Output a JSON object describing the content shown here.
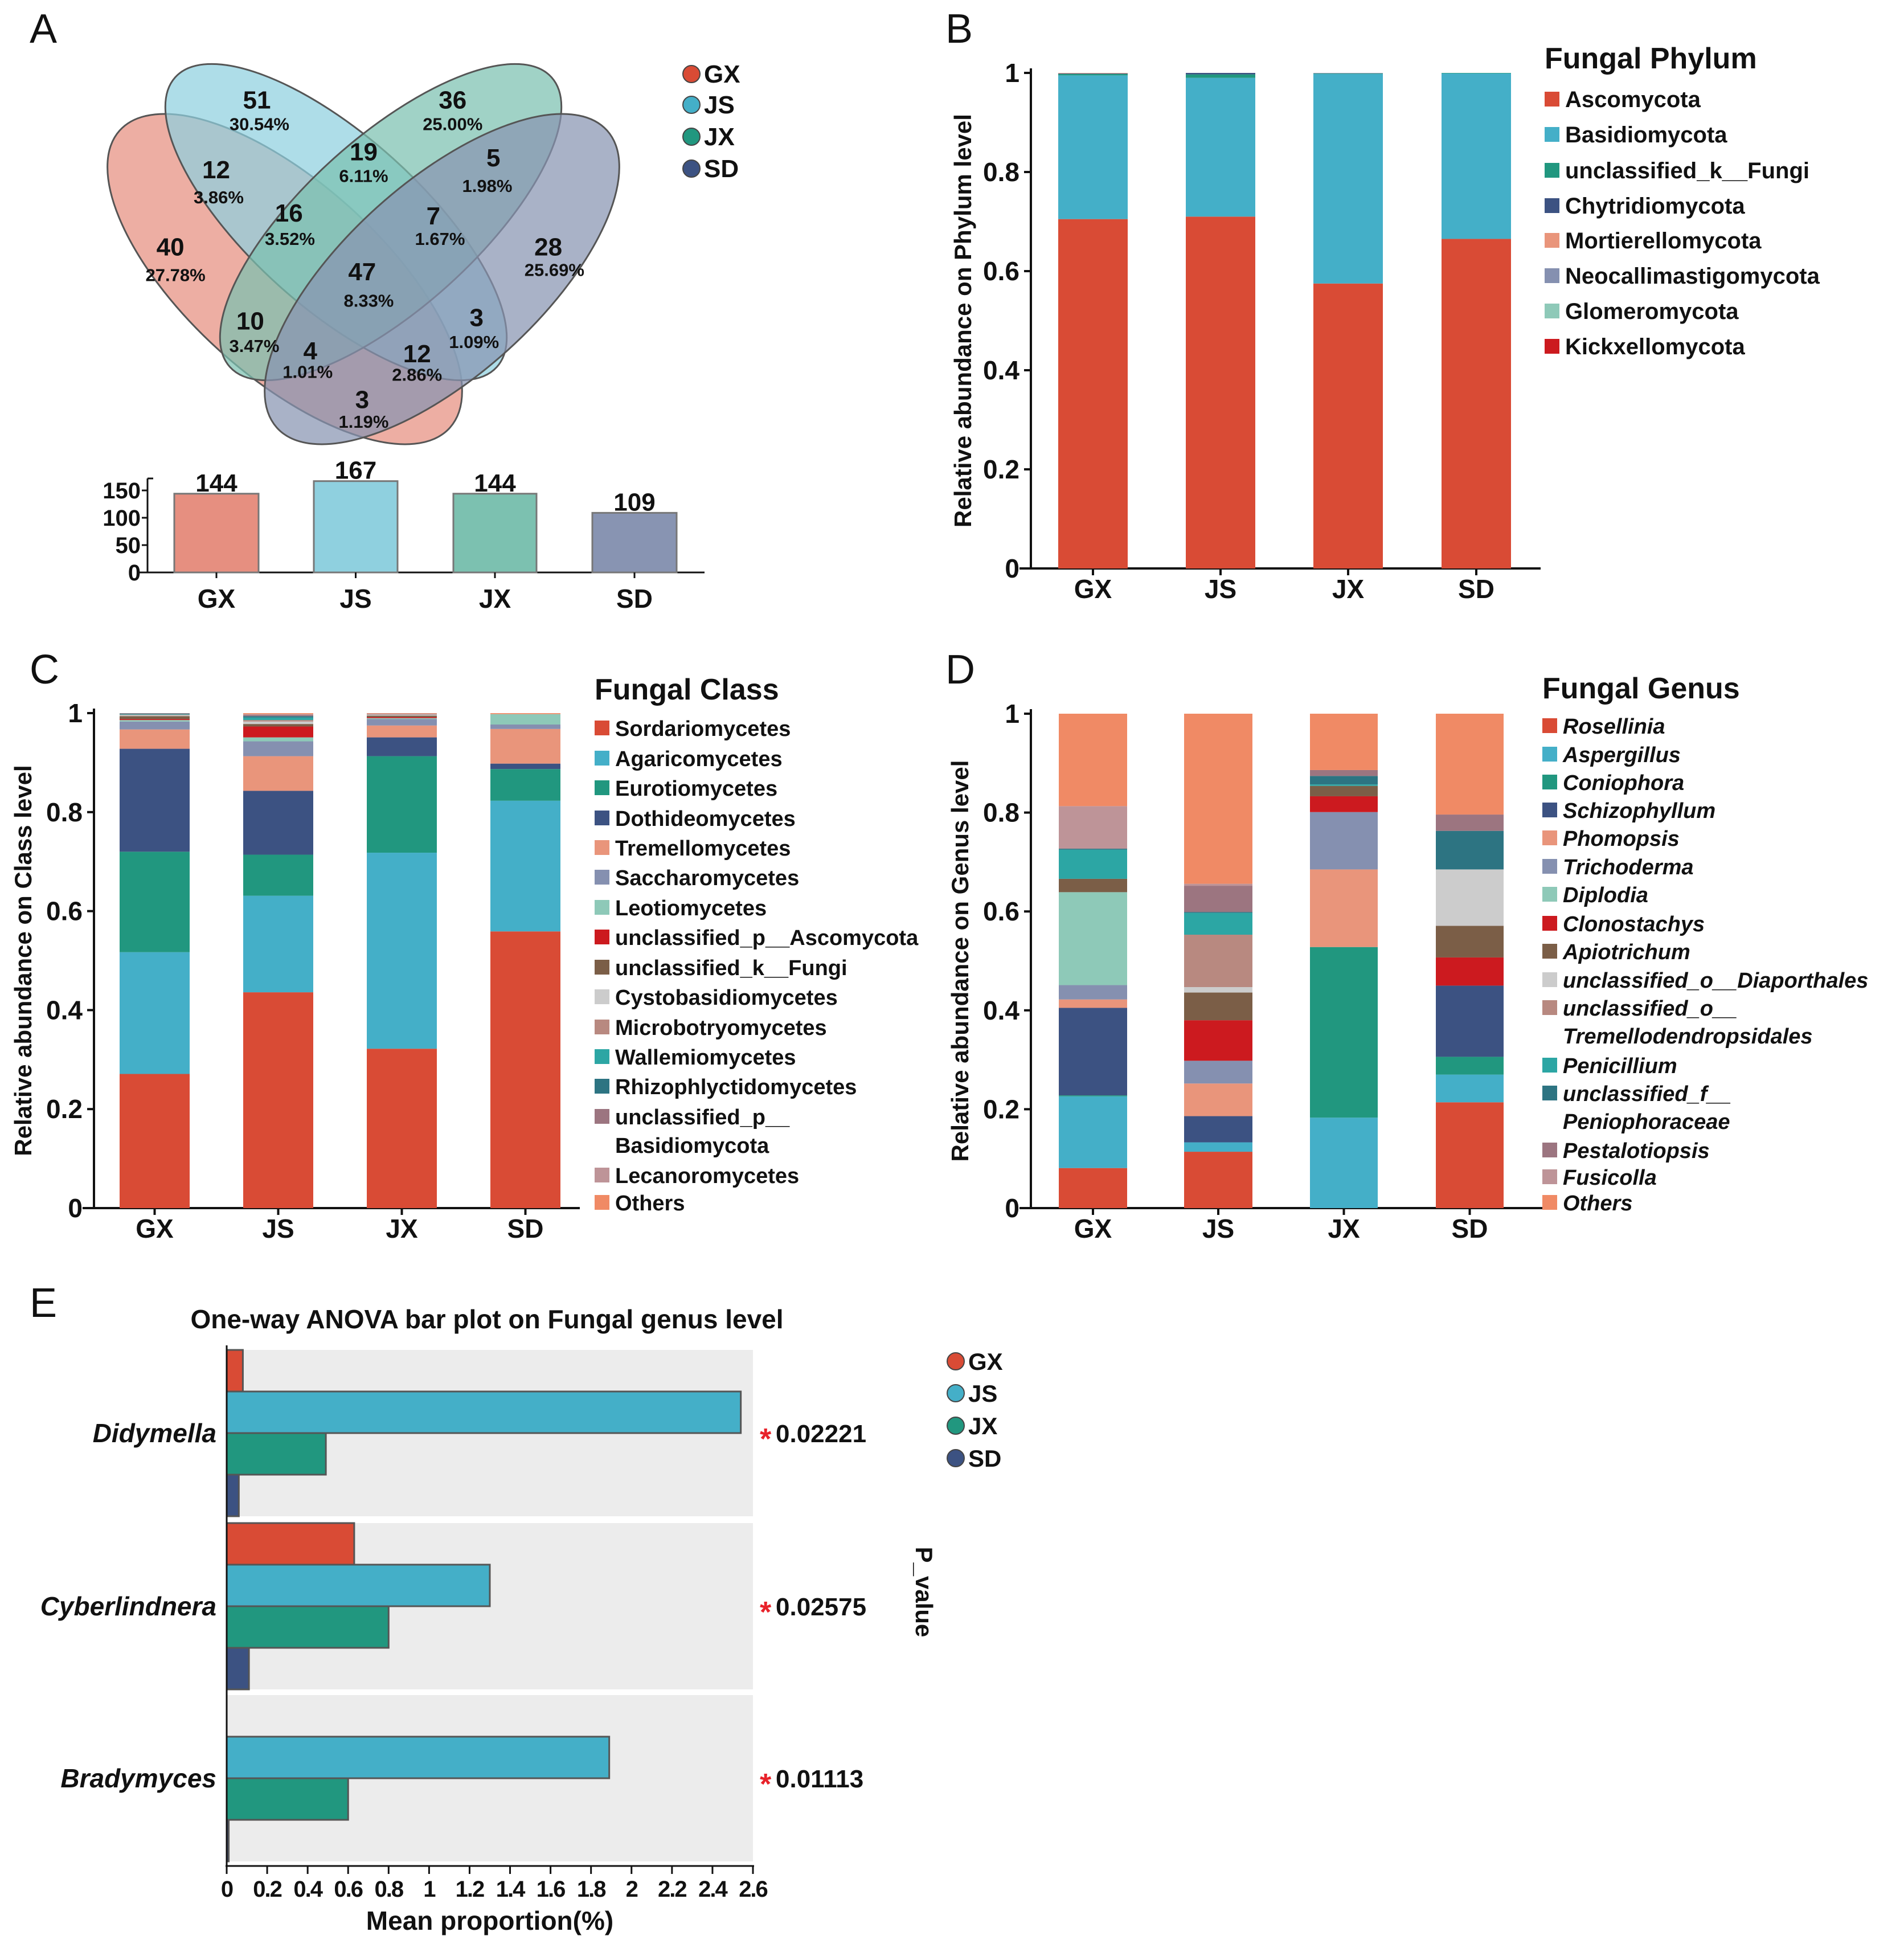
{
  "panel_labels": {
    "a": "A",
    "b": "B",
    "c": "C",
    "d": "D",
    "e": "E"
  },
  "groups": [
    "GX",
    "JS",
    "JX",
    "SD"
  ],
  "group_colors": {
    "GX": "#d94b35",
    "JS": "#44afc8",
    "JX": "#21977f",
    "SD": "#3c5282"
  },
  "chart_data": [
    {
      "id": "venn",
      "type": "venn",
      "sets": [
        "GX",
        "JS",
        "JX",
        "SD"
      ],
      "regions": [
        {
          "sets": [
            "JS"
          ],
          "count": "51",
          "percent": "30.54%"
        },
        {
          "sets": [
            "JX"
          ],
          "count": "36",
          "percent": "25.00%"
        },
        {
          "sets": [
            "GX",
            "JS"
          ],
          "count": "12",
          "percent": "3.86%"
        },
        {
          "sets": [
            "JS",
            "JX"
          ],
          "count": "19",
          "percent": "6.11%"
        },
        {
          "sets": [
            "JX",
            "SD"
          ],
          "count": "5",
          "percent": "1.98%"
        },
        {
          "sets": [
            "GX",
            "JS",
            "JX"
          ],
          "count": "16",
          "percent": "3.52%"
        },
        {
          "sets": [
            "JS",
            "JX",
            "SD"
          ],
          "count": "7",
          "percent": "1.67%"
        },
        {
          "sets": [
            "GX"
          ],
          "count": "40",
          "percent": "27.78%"
        },
        {
          "sets": [
            "SD"
          ],
          "count": "28",
          "percent": "25.69%"
        },
        {
          "sets": [
            "GX",
            "JS",
            "JX",
            "SD"
          ],
          "count": "47",
          "percent": "8.33%"
        },
        {
          "sets": [
            "GX",
            "JX"
          ],
          "count": "10",
          "percent": "3.47%"
        },
        {
          "sets": [
            "JS",
            "SD"
          ],
          "count": "3",
          "percent": "1.09%"
        },
        {
          "sets": [
            "GX",
            "JX",
            "SD"
          ],
          "count": "4",
          "percent": "1.01%"
        },
        {
          "sets": [
            "GX",
            "JS",
            "SD"
          ],
          "count": "12",
          "percent": "2.86%"
        },
        {
          "sets": [
            "GX",
            "SD"
          ],
          "count": "3",
          "percent": "1.19%"
        }
      ],
      "legend": [
        "GX",
        "JS",
        "JX",
        "SD"
      ],
      "colors": [
        "#e68f80",
        "#8fd0df",
        "#7cc1b0",
        "#8894b2"
      ]
    },
    {
      "id": "totals",
      "type": "bar",
      "categories": [
        "GX",
        "JS",
        "JX",
        "SD"
      ],
      "values": [
        144,
        167,
        144,
        109
      ],
      "value_labels": [
        "144",
        "167",
        "144",
        "109"
      ],
      "yticks": [
        "0",
        "50",
        "100",
        "150"
      ],
      "ylim": [
        0,
        175
      ],
      "colors": [
        "#e68f80",
        "#8fd0df",
        "#7cc1b0",
        "#8894b2"
      ]
    },
    {
      "id": "phylum",
      "type": "bar",
      "stacked": true,
      "ylabel": "Relative abundance on Phylum level",
      "ylim": [
        0,
        1
      ],
      "yticks": [
        "0",
        "0.2",
        "0.4",
        "0.6",
        "0.8",
        "1"
      ],
      "categories": [
        "GX",
        "JS",
        "JX",
        "SD"
      ],
      "legend_title": "Fungal Phylum",
      "series": [
        {
          "name": "Ascomycota",
          "color": "#d94b35",
          "values": [
            0.705,
            0.71,
            0.575,
            0.665
          ]
        },
        {
          "name": "Basidiomycota",
          "color": "#44afc8",
          "values": [
            0.29,
            0.28,
            0.423,
            0.334
          ]
        },
        {
          "name": "unclassified_k__Fungi",
          "color": "#21977f",
          "values": [
            0.003,
            0.007,
            0.001,
            0.001
          ]
        },
        {
          "name": "Chytridiomycota",
          "color": "#3c5282",
          "values": [
            0.001,
            0.003,
            0,
            0
          ]
        },
        {
          "name": "Mortierellomycota",
          "color": "#e9957b",
          "values": [
            0.001,
            0,
            0,
            0
          ]
        },
        {
          "name": "Neocallimastigomycota",
          "color": "#8590b0",
          "values": [
            0,
            0,
            0.001,
            0
          ]
        },
        {
          "name": "Glomeromycota",
          "color": "#8ec9b8",
          "values": [
            0,
            0,
            0,
            0
          ]
        },
        {
          "name": "Kickxellomycota",
          "color": "#cc1a1f",
          "values": [
            0,
            0,
            0,
            0
          ]
        }
      ]
    },
    {
      "id": "class",
      "type": "bar",
      "stacked": true,
      "ylabel": "Relative abundance on Class level",
      "ylim": [
        0,
        1
      ],
      "yticks": [
        "0",
        "0.2",
        "0.4",
        "0.6",
        "0.8",
        "1"
      ],
      "categories": [
        "GX",
        "JS",
        "JX",
        "SD"
      ],
      "legend_title": "Fungal Class",
      "series": [
        {
          "name": "Sordariomycetes",
          "color": "#d94b35",
          "values": [
            0.271,
            0.436,
            0.322,
            0.559
          ]
        },
        {
          "name": "Agaricomycetes",
          "color": "#44afc8",
          "values": [
            0.246,
            0.195,
            0.396,
            0.264
          ]
        },
        {
          "name": "Eurotiomycetes",
          "color": "#21977f",
          "values": [
            0.203,
            0.083,
            0.195,
            0.064
          ]
        },
        {
          "name": "Dothideomycetes",
          "color": "#3c5282",
          "values": [
            0.208,
            0.129,
            0.038,
            0.011
          ]
        },
        {
          "name": "Tremellomycetes",
          "color": "#e9957b",
          "values": [
            0.039,
            0.07,
            0.024,
            0.07
          ]
        },
        {
          "name": "Saccharomycetes",
          "color": "#8590b0",
          "values": [
            0.016,
            0.03,
            0.013,
            0.009
          ]
        },
        {
          "name": "Leotiomycetes",
          "color": "#8ec9b8",
          "values": [
            0.003,
            0.008,
            0.002,
            0.021
          ]
        },
        {
          "name": "unclassified_p__Ascomycota",
          "color": "#cc1a1f",
          "values": [
            0.002,
            0.022,
            0.002,
            0
          ]
        },
        {
          "name": "unclassified_k__Fungi",
          "color": "#7b5e47",
          "values": [
            0.006,
            0.005,
            0.003,
            0
          ]
        },
        {
          "name": "Cystobasidiomycetes",
          "color": "#cccccc",
          "values": [
            0.002,
            0.005,
            0.002,
            0
          ]
        },
        {
          "name": "Microbotryomycetes",
          "color": "#b88980",
          "values": [
            0.001,
            0.003,
            0.001,
            0
          ]
        },
        {
          "name": "Wallemiomycetes",
          "color": "#2ca6a4",
          "values": [
            0.001,
            0.005,
            0,
            0
          ]
        },
        {
          "name": "Rhizophlyctidomycetes",
          "color": "#2d7482",
          "values": [
            0.001,
            0.003,
            0,
            0
          ]
        },
        {
          "name": "unclassified_p__ Basidiomycota",
          "lines": [
            "unclassified_p__",
            "Basidiomycota"
          ],
          "color": "#9c7580",
          "values": [
            0.001,
            0.002,
            0.001,
            0
          ]
        },
        {
          "name": "Lecanoromycetes",
          "color": "#be9498",
          "values": [
            0,
            0.002,
            0,
            0
          ]
        },
        {
          "name": "Others",
          "color": "#f08a65",
          "values": [
            0,
            0.002,
            0.001,
            0.002
          ]
        }
      ]
    },
    {
      "id": "genus",
      "type": "bar",
      "stacked": true,
      "ylabel": "Relative abundance on Genus level",
      "ylim": [
        0,
        1
      ],
      "yticks": [
        "0",
        "0.2",
        "0.4",
        "0.6",
        "0.8",
        "1"
      ],
      "categories": [
        "GX",
        "JS",
        "JX",
        "SD"
      ],
      "legend_title": "Fungal Genus",
      "series": [
        {
          "name": "Rosellinia",
          "color": "#d94b35",
          "values": [
            0.081,
            0.114,
            0,
            0.214
          ]
        },
        {
          "name": "Aspergillus",
          "color": "#44afc8",
          "values": [
            0.145,
            0.019,
            0.183,
            0.056
          ]
        },
        {
          "name": "Coniophora",
          "color": "#21977f",
          "values": [
            0.002,
            0,
            0.345,
            0.036
          ]
        },
        {
          "name": "Schizophyllum",
          "color": "#3c5282",
          "values": [
            0.177,
            0.053,
            0,
            0.144
          ]
        },
        {
          "name": "Phomopsis",
          "color": "#e9957b",
          "values": [
            0.017,
            0.066,
            0.157,
            0
          ]
        },
        {
          "name": "Trichoderma",
          "color": "#8590b0",
          "values": [
            0.029,
            0.046,
            0.116,
            0
          ]
        },
        {
          "name": "Diplodia",
          "color": "#8ec9b8",
          "values": [
            0.188,
            0,
            0,
            0
          ]
        },
        {
          "name": "Clonostachys",
          "color": "#cc1a1f",
          "values": [
            0,
            0.082,
            0.032,
            0.057
          ]
        },
        {
          "name": "Apiotrichum",
          "color": "#7b5e47",
          "values": [
            0.027,
            0.056,
            0.021,
            0.064
          ]
        },
        {
          "name": "unclassified_o__Diaporthales",
          "color": "#cccccc",
          "values": [
            0,
            0.011,
            0,
            0.114
          ]
        },
        {
          "name": "unclassified_o__ Tremellodendropsidales",
          "lines": [
            "unclassified_o__",
            "Tremellodendropsidales"
          ],
          "color": "#b88980",
          "values": [
            0,
            0.106,
            0,
            0
          ]
        },
        {
          "name": "Penicillium",
          "color": "#2ca6a4",
          "values": [
            0.059,
            0.044,
            0.003,
            0
          ]
        },
        {
          "name": "unclassified_f__ Peniophoraceae",
          "lines": [
            "unclassified_f__",
            "Peniophoraceae"
          ],
          "color": "#2d7482",
          "values": [
            0.002,
            0.002,
            0.017,
            0.078
          ]
        },
        {
          "name": "Pestalotiopsis",
          "color": "#9c7580",
          "values": [
            0,
            0.053,
            0.012,
            0.033
          ]
        },
        {
          "name": "Fusicolla",
          "color": "#be9498",
          "values": [
            0.086,
            0.004,
            0,
            0
          ]
        },
        {
          "name": "Others",
          "color": "#f08a65",
          "values": [
            0.187,
            0.344,
            0.114,
            0.204
          ]
        }
      ]
    },
    {
      "id": "anova",
      "type": "bar",
      "orientation": "horizontal",
      "title": "One-way ANOVA bar plot on Fungal genus level",
      "xlabel": "Mean proportion(%)",
      "xlim": [
        0,
        2.6
      ],
      "xticks": [
        "0",
        "0.2",
        "0.4",
        "0.6",
        "0.8",
        "1",
        "1.2",
        "1.4",
        "1.6",
        "1.8",
        "2",
        "2.2",
        "2.4",
        "2.6"
      ],
      "right_axis_label": "P_value",
      "significance_marker": "*",
      "marker_color": "#e8222a",
      "categories": [
        "Didymella",
        "Cyberlindnera",
        "Bradymyces"
      ],
      "p_values": [
        "0.02221",
        "0.02575",
        "0.01113"
      ],
      "series": [
        {
          "name": "GX",
          "color": "#d94b35",
          "values": [
            0.08,
            0.63,
            0
          ]
        },
        {
          "name": "JS",
          "color": "#44afc8",
          "values": [
            2.54,
            1.3,
            1.89
          ]
        },
        {
          "name": "JX",
          "color": "#21977f",
          "values": [
            0.49,
            0.8,
            0.6
          ]
        },
        {
          "name": "SD",
          "color": "#3c5282",
          "values": [
            0.06,
            0.11,
            0.01
          ]
        }
      ],
      "legend": [
        "GX",
        "JS",
        "JX",
        "SD"
      ],
      "panel_background": "#ececec"
    }
  ]
}
